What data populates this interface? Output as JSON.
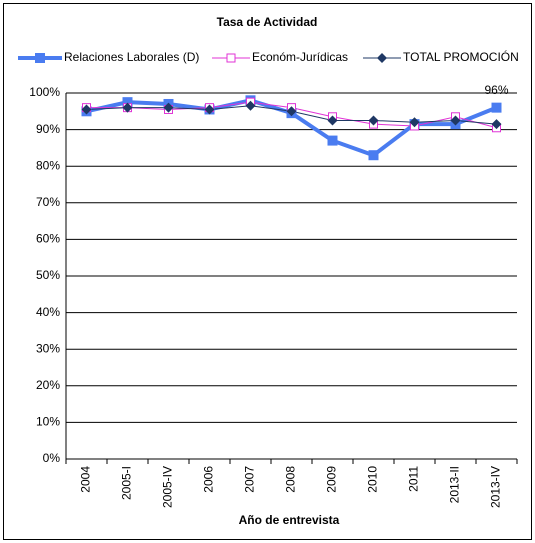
{
  "chart_data": {
    "type": "line",
    "title": "Tasa de Actividad",
    "x_label": "Año de entrevista",
    "categories": [
      "2004",
      "2005-I",
      "2005-IV",
      "2006",
      "2007",
      "2008",
      "2009",
      "2010",
      "2011",
      "2013-II",
      "2013-IV"
    ],
    "series": [
      {
        "name": "Relaciones Laborales (D)",
        "color": "#4a7cf0",
        "marker": "square",
        "width": 4,
        "values": [
          95,
          97.5,
          97,
          95.5,
          98,
          94.5,
          87,
          83,
          91.5,
          91.5,
          96
        ],
        "value_labels": [
          null,
          null,
          null,
          null,
          null,
          null,
          null,
          null,
          null,
          null,
          "96%"
        ]
      },
      {
        "name": "Económ-Jurídicas",
        "color": "#e033d6",
        "marker": "open-square",
        "width": 1,
        "values": [
          96,
          96,
          95.5,
          96,
          97.5,
          96,
          93.5,
          91.5,
          91,
          93.5,
          90.5
        ]
      },
      {
        "name": "TOTAL PROMOCIÓN",
        "color": "#1f3864",
        "marker": "diamond",
        "width": 1,
        "values": [
          95.5,
          96,
          96,
          95.5,
          96.5,
          95,
          92.5,
          92.5,
          92,
          92.5,
          91.5
        ]
      }
    ],
    "ylim": [
      0,
      100
    ],
    "yticks": [
      {
        "value": 0,
        "label": "0%"
      },
      {
        "value": 10,
        "label": "10%"
      },
      {
        "value": 20,
        "label": "20%"
      },
      {
        "value": 30,
        "label": "30%"
      },
      {
        "value": 40,
        "label": "40%"
      },
      {
        "value": 50,
        "label": "50%"
      },
      {
        "value": 60,
        "label": "60%"
      },
      {
        "value": 70,
        "label": "70%"
      },
      {
        "value": 80,
        "label": "80%"
      },
      {
        "value": 90,
        "label": "90%"
      },
      {
        "value": 100,
        "label": "100%"
      }
    ],
    "grid": true,
    "legend": "top"
  }
}
